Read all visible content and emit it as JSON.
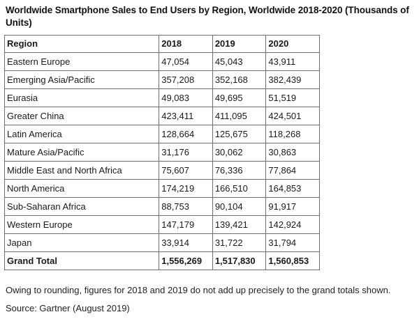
{
  "title": "Worldwide Smartphone Sales to End Users by Region, Worldwide 2018-2020 (Thousands of Units)",
  "table": {
    "headers": [
      "Region",
      "2018",
      "2019",
      "2020"
    ],
    "rows": [
      [
        "Eastern Europe",
        "47,054",
        "45,043",
        "43,911"
      ],
      [
        "Emerging Asia/Pacific",
        "357,208",
        "352,168",
        "382,439"
      ],
      [
        "Eurasia",
        "49,083",
        "49,695",
        "51,519"
      ],
      [
        "Greater China",
        "423,411",
        "411,095",
        "424,501"
      ],
      [
        "Latin America",
        "128,664",
        "125,675",
        "118,268"
      ],
      [
        "Mature Asia/Pacific",
        "31,176",
        "30,062",
        "30,863"
      ],
      [
        "Middle East and North Africa",
        "75,607",
        "76,336",
        "77,864"
      ],
      [
        "North America",
        "174,219",
        "166,510",
        "164,853"
      ],
      [
        "Sub-Saharan Africa",
        "88,753",
        "90,104",
        "91,917"
      ],
      [
        "Western Europe",
        "147,179",
        "139,421",
        "142,924"
      ],
      [
        "Japan",
        "33,914",
        "31,722",
        "31,794"
      ]
    ],
    "total": [
      "Grand Total",
      "1,556,269",
      "1,517,830",
      "1,560,853"
    ]
  },
  "footnote": "Owing to rounding, figures for 2018 and 2019 do not add up precisely to the grand totals shown.",
  "source": "Source: Gartner (August 2019)"
}
